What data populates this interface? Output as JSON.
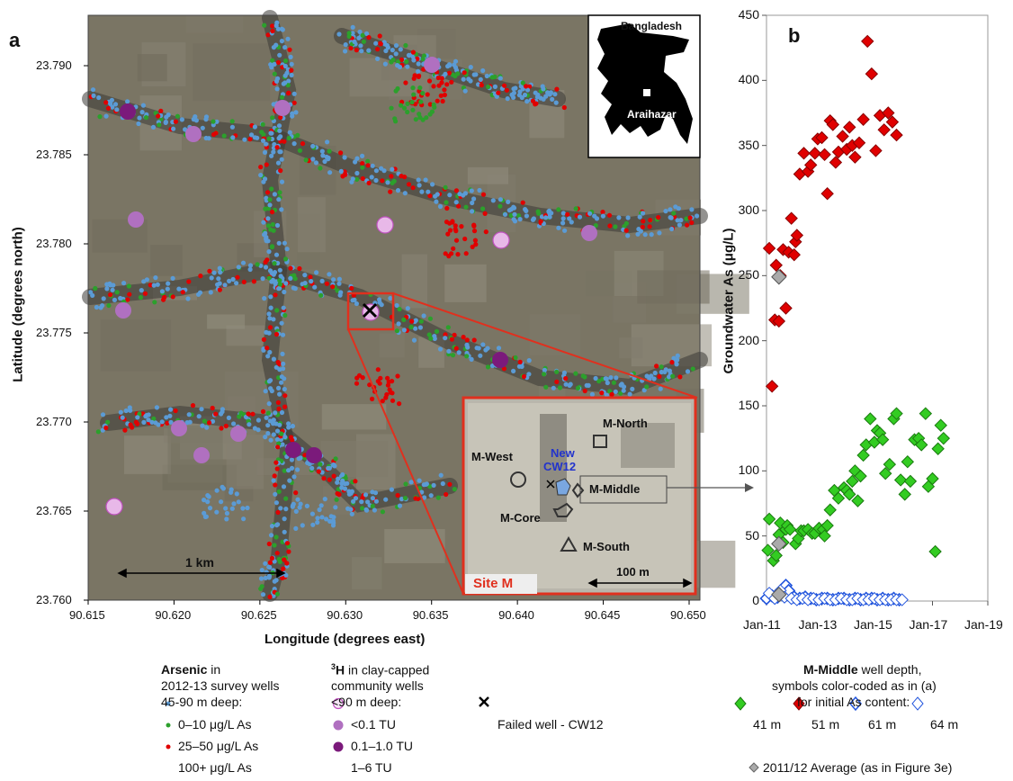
{
  "panel_a": {
    "letter": "a",
    "xlabel": "Longitude (degrees east)",
    "ylabel": "Latitude (degrees north)",
    "xticks": [
      "90.615",
      "90.620",
      "90.625",
      "90.630",
      "90.635",
      "90.640",
      "90.645",
      "90.650"
    ],
    "yticks": [
      "23.790",
      "23.785",
      "23.780",
      "23.775",
      "23.770",
      "23.765",
      "23.760"
    ],
    "scale_bar": "1 km",
    "inset_country": "Bangladesh",
    "inset_place": "Araihazar",
    "site": {
      "title": "Site M",
      "scale": "100 m",
      "north": "M-North",
      "west": "M-West",
      "new_well_line1": "New",
      "new_well_line2": "CW12",
      "middle": "M-Middle",
      "core": "M-Core",
      "south": "M-South"
    }
  },
  "legend_a": {
    "arsenic_title": "Arsenic",
    "arsenic_title_rest": " in",
    "arsenic_line2": "2012-13 survey wells",
    "arsenic_line3": "45-90 m deep:",
    "arsenic_items": [
      "0–10 μg/L As",
      "25–50 μg/L As",
      "100+ μg/L As"
    ],
    "tritium_title_sup": "3",
    "tritium_title": "H",
    "tritium_title_rest": " in clay-capped",
    "tritium_line2": "community wells",
    "tritium_line3": "<90 m deep:",
    "tritium_items": [
      "<0.1 TU",
      "0.1–1.0 TU",
      "1–6 TU"
    ],
    "failed_well": "Failed well - CW12"
  },
  "legend_b": {
    "title_bold": "M-Middle",
    "title_rest": " well depth,",
    "line2": "symbols color-coded as in (a)",
    "line3": "for initial As content:",
    "series_labels": [
      "41 m",
      "51 m",
      "61 m",
      "64 m"
    ],
    "average_label": "2011/12 Average (as in Figure 3e)"
  },
  "colors": {
    "low": "#5b9bd5",
    "mid": "#2ca02c",
    "high": "#e00000",
    "tu_low": "#e8b8e8",
    "tu_mid": "#b070c0",
    "tu_high": "#7b1a7b",
    "green_marker": "#33cc22",
    "red_marker": "#e00000",
    "blue_marker": "#2255dd",
    "gray_marker": "#aaaaaa",
    "site_border": "#e0301e"
  },
  "chart_data": {
    "type": "scatter",
    "letter": "b",
    "ylabel": "Groundwater As (μg/L)",
    "xlabel": "",
    "x_tick_labels": [
      "Jan-11",
      "Jan-13",
      "Jan-15",
      "Jan-17",
      "Jan-19"
    ],
    "x_ticks": [
      2011,
      2013,
      2015,
      2017,
      2019
    ],
    "ylim": [
      0,
      450
    ],
    "xlim": [
      2011,
      2019
    ],
    "y_ticks": [
      0,
      50,
      100,
      150,
      200,
      250,
      300,
      350,
      400,
      450
    ],
    "series": [
      {
        "name": "41 m",
        "color": "#33cc22",
        "filled": true,
        "x": [
          2011.05,
          2011.1,
          2011.25,
          2011.35,
          2011.45,
          2011.5,
          2011.6,
          2011.7,
          2011.75,
          2011.85,
          2012.05,
          2012.15,
          2012.25,
          2012.35,
          2012.5,
          2012.65,
          2012.75,
          2012.9,
          2013.05,
          2013.1,
          2013.2,
          2013.3,
          2013.45,
          2013.6,
          2013.8,
          2013.9,
          2014.0,
          2014.1,
          2014.2,
          2014.3,
          2014.4,
          2014.5,
          2014.6,
          2014.75,
          2014.9,
          2015.0,
          2015.1,
          2015.2,
          2015.3,
          2015.45,
          2015.6,
          2015.7,
          2015.85,
          2016.0,
          2016.1,
          2016.2,
          2016.35,
          2016.5,
          2016.6,
          2016.75,
          2016.85,
          2017.0,
          2017.1,
          2017.2,
          2017.3,
          2017.4
        ],
        "y": [
          39,
          63,
          31,
          35,
          51,
          60,
          45,
          55,
          58,
          55,
          44,
          48,
          54,
          54,
          55,
          52,
          52,
          56,
          55,
          50,
          58,
          70,
          85,
          79,
          87,
          85,
          82,
          92,
          100,
          77,
          96,
          112,
          120,
          140,
          122,
          131,
          129,
          124,
          98,
          105,
          140,
          144,
          93,
          82,
          107,
          92,
          124,
          125,
          120,
          144,
          88,
          94,
          38,
          117,
          135,
          125
        ]
      },
      {
        "name": "51 m",
        "color": "#e00000",
        "filled": true,
        "x": [
          2011.1,
          2011.2,
          2011.3,
          2011.35,
          2011.45,
          2011.5,
          2011.6,
          2011.7,
          2011.8,
          2011.9,
          2012.0,
          2012.05,
          2012.1,
          2012.2,
          2012.35,
          2012.5,
          2012.6,
          2012.75,
          2012.85,
          2013.0,
          2013.1,
          2013.2,
          2013.3,
          2013.4,
          2013.5,
          2013.6,
          2013.75,
          2013.9,
          2014.0,
          2014.1,
          2014.2,
          2014.35,
          2014.5,
          2014.65,
          2014.8,
          2014.95,
          2015.1,
          2015.25,
          2015.4,
          2015.55,
          2015.7
        ],
        "y": [
          271,
          165,
          216,
          258,
          215,
          250,
          270,
          225,
          268,
          294,
          266,
          276,
          281,
          328,
          344,
          330,
          335,
          344,
          355,
          356,
          343,
          313,
          369,
          366,
          337,
          345,
          357,
          347,
          364,
          350,
          341,
          352,
          370,
          430,
          405,
          346,
          373,
          362,
          375,
          368,
          358
        ]
      },
      {
        "name": "61 m",
        "color": "#2255dd",
        "filled": false,
        "x": [
          2011.0,
          2011.2,
          2011.4,
          2011.6,
          2011.7,
          2011.8,
          2012.0,
          2012.2,
          2012.4,
          2012.6,
          2012.8,
          2013.0,
          2013.2,
          2013.4,
          2013.6,
          2013.8,
          2014.0,
          2014.2,
          2014.4,
          2014.6,
          2014.8,
          2015.0,
          2015.2,
          2015.4,
          2015.6,
          2015.8
        ],
        "y": [
          2,
          4,
          3,
          5,
          12,
          8,
          3,
          2,
          3,
          2,
          1,
          2,
          2,
          1,
          2,
          2,
          1,
          2,
          1,
          2,
          2,
          1,
          2,
          1,
          2,
          1
        ]
      },
      {
        "name": "64 m",
        "color": "#2255dd",
        "filled": false,
        "x": [
          2011.1,
          2011.3,
          2011.5,
          2011.65,
          2011.9,
          2012.1,
          2012.3,
          2012.5,
          2012.7,
          2012.9,
          2013.1,
          2013.3,
          2013.5,
          2013.7,
          2013.9,
          2014.1,
          2014.3,
          2014.5,
          2014.7,
          2014.9,
          2015.1,
          2015.3,
          2015.5,
          2015.7,
          2015.9
        ],
        "y": [
          6,
          2,
          8,
          3,
          2,
          1,
          2,
          1,
          2,
          1,
          2,
          1,
          1,
          2,
          1,
          1,
          2,
          1,
          1,
          2,
          1,
          1,
          1,
          1,
          1
        ]
      },
      {
        "name": "2011/12 Average (as in Figure 3e)",
        "color": "#aaaaaa",
        "filled": true,
        "x": [
          2011.45,
          2011.45,
          2011.45
        ],
        "y": [
          249,
          44,
          5
        ]
      }
    ]
  }
}
